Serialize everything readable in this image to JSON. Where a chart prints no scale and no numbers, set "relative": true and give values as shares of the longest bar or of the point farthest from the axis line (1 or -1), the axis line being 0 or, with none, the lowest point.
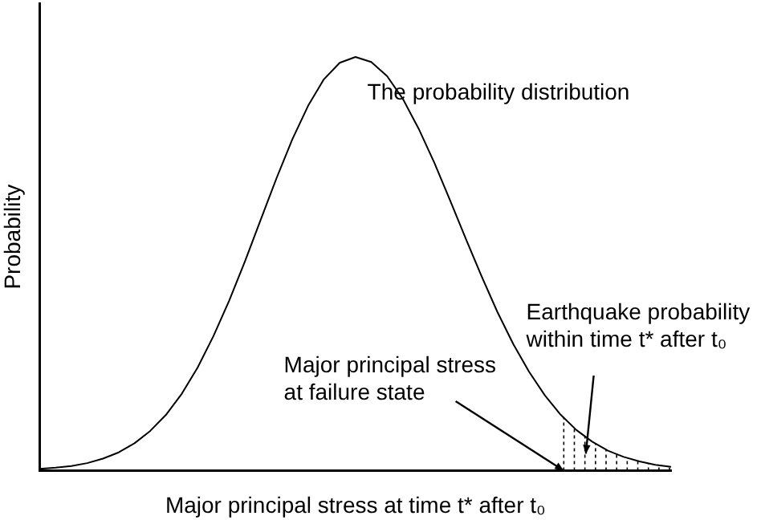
{
  "chart_data": {
    "type": "line",
    "relative": true,
    "xlabel": "Major principal stress at time t* after t₀",
    "ylabel": "Probability",
    "categories": [
      null,
      null,
      null,
      null,
      null,
      null,
      null,
      null,
      null,
      null,
      null,
      null,
      null,
      null,
      null,
      null,
      null,
      null,
      null,
      null,
      null,
      null,
      null,
      null,
      null,
      null,
      null,
      null,
      null,
      null,
      null,
      null,
      null,
      null,
      null,
      null,
      null,
      null,
      null,
      null,
      null
    ],
    "values": [
      0.004,
      0.007,
      0.011,
      0.018,
      0.029,
      0.044,
      0.066,
      0.096,
      0.135,
      0.186,
      0.249,
      0.325,
      0.411,
      0.506,
      0.607,
      0.707,
      0.801,
      0.882,
      0.946,
      0.986,
      1,
      0.988,
      0.954,
      0.899,
      0.827,
      0.744,
      0.653,
      0.56,
      0.469,
      0.383,
      0.306,
      0.239,
      0.182,
      0.135,
      0.098,
      0.07,
      0.048,
      0.033,
      0.022,
      0.014,
      0.009
    ],
    "color": "#000000",
    "marker": "none",
    "line_style": "solid",
    "legend": false,
    "annotations": [
      "The probability distribution",
      "Major principal stress at failure state",
      "Earthquake probability within time t* after t₀"
    ]
  }
}
